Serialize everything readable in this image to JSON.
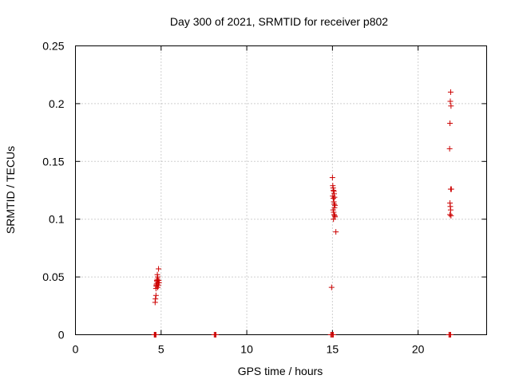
{
  "chart_data": {
    "type": "scatter",
    "title": "Day 300 of 2021, SRMTID for receiver p802",
    "xlabel": "GPS time / hours",
    "ylabel": "SRMTID / TECUs",
    "xlim": [
      0,
      24
    ],
    "ylim": [
      0,
      0.25
    ],
    "xticks": [
      0,
      5,
      10,
      15,
      20
    ],
    "xtick_labels": [
      "0",
      "5",
      "10",
      "15",
      "20"
    ],
    "yticks": [
      0,
      0.05,
      0.1,
      0.15,
      0.2,
      0.25
    ],
    "ytick_labels": [
      "0",
      "0.05",
      "0.1",
      "0.15",
      "0.2",
      "0.25"
    ],
    "grid": true,
    "marker": "+",
    "color": "#cc0000",
    "series": [
      {
        "name": "SRMTID",
        "points": [
          [
            4.6,
            0.0
          ],
          [
            4.62,
            0.0
          ],
          [
            4.65,
            0.0
          ],
          [
            4.68,
            0.0
          ],
          [
            4.7,
            0.0
          ],
          [
            8.1,
            0.0
          ],
          [
            8.15,
            0.0
          ],
          [
            8.2,
            0.0
          ],
          [
            14.9,
            0.0
          ],
          [
            14.95,
            0.0
          ],
          [
            15.0,
            0.0
          ],
          [
            15.05,
            0.0
          ],
          [
            21.8,
            0.0
          ],
          [
            21.85,
            0.0
          ],
          [
            21.9,
            0.0
          ],
          [
            4.65,
            0.028
          ],
          [
            4.67,
            0.031
          ],
          [
            4.7,
            0.034
          ],
          [
            4.7,
            0.04
          ],
          [
            4.72,
            0.042
          ],
          [
            4.74,
            0.044
          ],
          [
            4.76,
            0.046
          ],
          [
            4.78,
            0.048
          ],
          [
            4.8,
            0.05
          ],
          [
            4.72,
            0.043
          ],
          [
            4.75,
            0.047
          ],
          [
            4.8,
            0.041
          ],
          [
            4.82,
            0.045
          ],
          [
            4.84,
            0.043
          ],
          [
            4.86,
            0.047
          ],
          [
            4.88,
            0.045
          ],
          [
            4.78,
            0.052
          ],
          [
            4.85,
            0.057
          ],
          [
            14.95,
            0.041
          ],
          [
            15.0,
            0.136
          ],
          [
            15.02,
            0.129
          ],
          [
            15.04,
            0.127
          ],
          [
            15.06,
            0.125
          ],
          [
            15.08,
            0.124
          ],
          [
            15.1,
            0.122
          ],
          [
            15.02,
            0.12
          ],
          [
            15.05,
            0.118
          ],
          [
            15.08,
            0.115
          ],
          [
            15.1,
            0.113
          ],
          [
            15.12,
            0.11
          ],
          [
            15.04,
            0.108
          ],
          [
            15.07,
            0.106
          ],
          [
            15.1,
            0.104
          ],
          [
            15.13,
            0.103
          ],
          [
            15.15,
            0.102
          ],
          [
            15.06,
            0.1
          ],
          [
            15.12,
            0.119
          ],
          [
            15.15,
            0.112
          ],
          [
            15.2,
            0.089
          ],
          [
            21.9,
            0.21
          ],
          [
            21.88,
            0.202
          ],
          [
            21.92,
            0.198
          ],
          [
            21.86,
            0.183
          ],
          [
            21.84,
            0.161
          ],
          [
            21.9,
            0.126
          ],
          [
            21.94,
            0.126
          ],
          [
            21.86,
            0.114
          ],
          [
            21.88,
            0.111
          ],
          [
            21.9,
            0.108
          ],
          [
            21.86,
            0.104
          ],
          [
            21.92,
            0.103
          ]
        ]
      }
    ]
  }
}
